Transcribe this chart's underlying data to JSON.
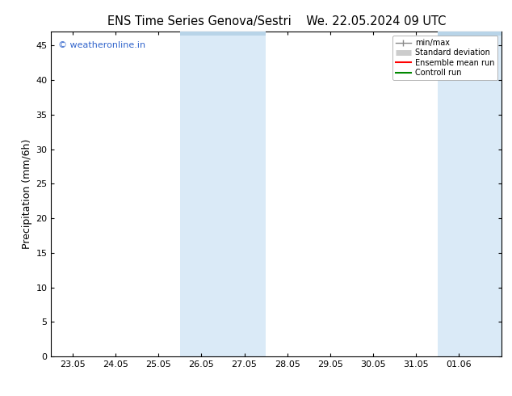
{
  "title_left": "ENS Time Series Genova/Sestri",
  "title_right": "We. 22.05.2024 09 UTC",
  "ylabel": "Precipitation (mm/6h)",
  "xlabel_ticks": [
    "23.05",
    "24.05",
    "25.05",
    "26.05",
    "27.05",
    "28.05",
    "29.05",
    "30.05",
    "31.05",
    "01.06"
  ],
  "ylim": [
    0,
    47
  ],
  "yticks": [
    0,
    5,
    10,
    15,
    20,
    25,
    30,
    35,
    40,
    45
  ],
  "shaded_regions": [
    {
      "x_start": 3.0,
      "x_end": 5.0,
      "color": "#daeaf7"
    },
    {
      "x_start": 9.0,
      "x_end": 10.5,
      "color": "#daeaf7"
    }
  ],
  "top_ticks_regions": [
    {
      "x_start": 3.0,
      "x_end": 5.0
    },
    {
      "x_start": 9.0,
      "x_end": 10.5
    }
  ],
  "watermark_text": "© weatheronline.in",
  "watermark_color": "#3366cc",
  "bg_color": "#ffffff",
  "plot_bg_color": "#ffffff",
  "legend_items": [
    {
      "label": "min/max",
      "type": "minmax",
      "color": "#888888",
      "lw": 1.0
    },
    {
      "label": "Standard deviation",
      "type": "band",
      "color": "#cccccc",
      "lw": 5
    },
    {
      "label": "Ensemble mean run",
      "type": "line",
      "color": "#ff0000",
      "lw": 1.5
    },
    {
      "label": "Controll run",
      "type": "line",
      "color": "#008800",
      "lw": 1.5
    }
  ],
  "tick_positions": [
    0.5,
    1.5,
    2.5,
    3.5,
    4.5,
    5.5,
    6.5,
    7.5,
    8.5,
    9.5
  ],
  "xlim": [
    0.0,
    10.5
  ],
  "tick_label_fontsize": 8,
  "axis_label_fontsize": 9,
  "title_fontsize": 10.5
}
